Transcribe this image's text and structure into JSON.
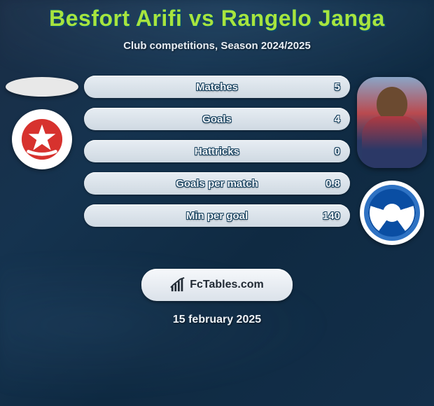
{
  "colors": {
    "title": "#a7e43e",
    "title_outline": "#0d4668",
    "p1_accent": "#e84a4a",
    "p2_accent": "#6b4a30",
    "mvv_red": "#d7322e",
    "eind_blue": "#0a4ea3"
  },
  "header": {
    "title": "Besfort Arifi vs Rangelo Janga",
    "subtitle": "Club competitions, Season 2024/2025"
  },
  "players": {
    "left_name": "Besfort Arifi",
    "right_name": "Rangelo Janga",
    "left_club": "MVV Maastricht",
    "right_club": "FC Eindhoven"
  },
  "bars": [
    {
      "label": "Matches",
      "left": "",
      "right": "5",
      "left_pct": 0,
      "right_pct": 0
    },
    {
      "label": "Goals",
      "left": "",
      "right": "4",
      "left_pct": 0,
      "right_pct": 0
    },
    {
      "label": "Hattricks",
      "left": "",
      "right": "0",
      "left_pct": 0,
      "right_pct": 0
    },
    {
      "label": "Goals per match",
      "left": "",
      "right": "0.8",
      "left_pct": 0,
      "right_pct": 0
    },
    {
      "label": "Min per goal",
      "left": "",
      "right": "140",
      "left_pct": 0,
      "right_pct": 0
    }
  ],
  "brand": {
    "label": "FcTables.com"
  },
  "date": {
    "label": "15 february 2025"
  }
}
